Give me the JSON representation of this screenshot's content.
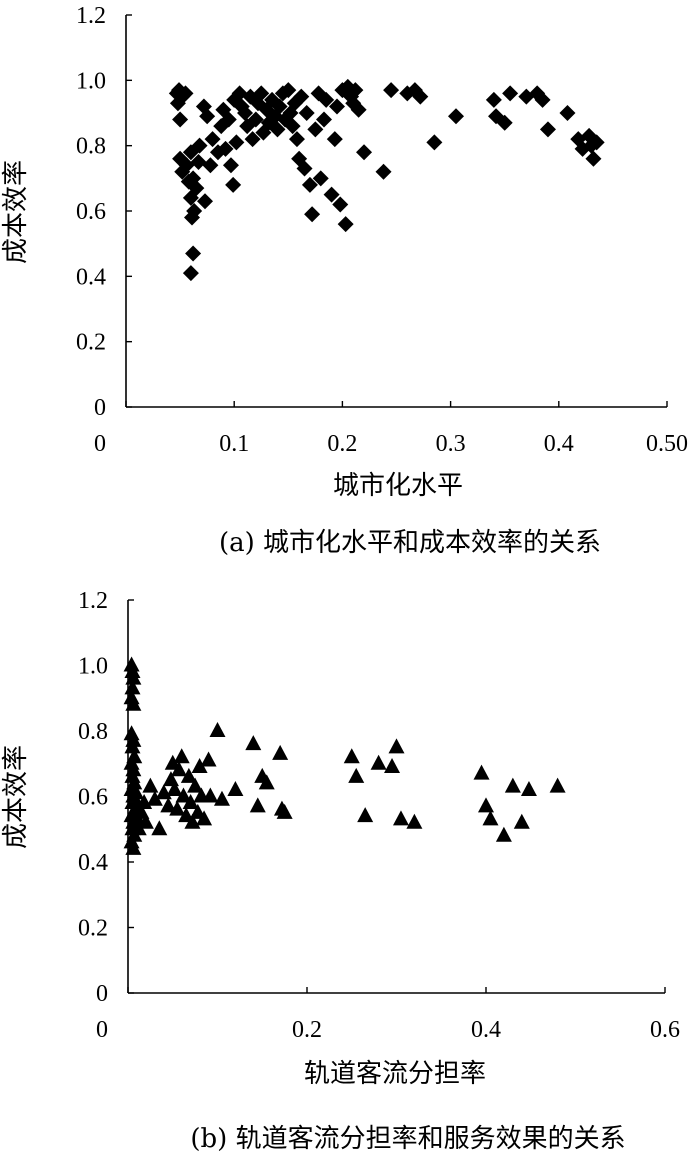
{
  "chart_data": [
    {
      "type": "scatter",
      "marker": "diamond",
      "xlabel": "城市化水平",
      "ylabel": "成本效率",
      "caption": "(a) 城市化水平和成本效率的关系",
      "xlim": [
        0,
        0.5
      ],
      "ylim": [
        0,
        1.2
      ],
      "x_ticks": [
        "0",
        "0.1",
        "0.2",
        "0.3",
        "0.4",
        "0.50"
      ],
      "y_ticks": [
        "0",
        "0.2",
        "0.4",
        "0.6",
        "0.8",
        "1.0",
        "1.2"
      ],
      "points": [
        [
          0.047,
          0.96
        ],
        [
          0.048,
          0.93
        ],
        [
          0.049,
          0.97
        ],
        [
          0.05,
          0.88
        ],
        [
          0.052,
          0.95
        ],
        [
          0.055,
          0.96
        ],
        [
          0.05,
          0.76
        ],
        [
          0.052,
          0.72
        ],
        [
          0.056,
          0.74
        ],
        [
          0.058,
          0.69
        ],
        [
          0.06,
          0.78
        ],
        [
          0.062,
          0.7
        ],
        [
          0.06,
          0.64
        ],
        [
          0.063,
          0.6
        ],
        [
          0.061,
          0.58
        ],
        [
          0.065,
          0.67
        ],
        [
          0.062,
          0.47
        ],
        [
          0.06,
          0.41
        ],
        [
          0.067,
          0.75
        ],
        [
          0.068,
          0.8
        ],
        [
          0.072,
          0.92
        ],
        [
          0.075,
          0.89
        ],
        [
          0.073,
          0.63
        ],
        [
          0.078,
          0.74
        ],
        [
          0.08,
          0.82
        ],
        [
          0.085,
          0.78
        ],
        [
          0.088,
          0.86
        ],
        [
          0.09,
          0.91
        ],
        [
          0.092,
          0.79
        ],
        [
          0.095,
          0.88
        ],
        [
          0.097,
          0.74
        ],
        [
          0.099,
          0.68
        ],
        [
          0.1,
          0.94
        ],
        [
          0.102,
          0.81
        ],
        [
          0.105,
          0.96
        ],
        [
          0.107,
          0.92
        ],
        [
          0.11,
          0.9
        ],
        [
          0.112,
          0.86
        ],
        [
          0.115,
          0.95
        ],
        [
          0.117,
          0.82
        ],
        [
          0.12,
          0.88
        ],
        [
          0.122,
          0.93
        ],
        [
          0.125,
          0.96
        ],
        [
          0.127,
          0.84
        ],
        [
          0.13,
          0.91
        ],
        [
          0.132,
          0.87
        ],
        [
          0.135,
          0.94
        ],
        [
          0.138,
          0.89
        ],
        [
          0.14,
          0.85
        ],
        [
          0.142,
          0.92
        ],
        [
          0.145,
          0.96
        ],
        [
          0.147,
          0.88
        ],
        [
          0.15,
          0.97
        ],
        [
          0.152,
          0.9
        ],
        [
          0.154,
          0.86
        ],
        [
          0.156,
          0.93
        ],
        [
          0.158,
          0.82
        ],
        [
          0.16,
          0.76
        ],
        [
          0.162,
          0.95
        ],
        [
          0.165,
          0.73
        ],
        [
          0.167,
          0.9
        ],
        [
          0.17,
          0.68
        ],
        [
          0.172,
          0.59
        ],
        [
          0.175,
          0.85
        ],
        [
          0.178,
          0.96
        ],
        [
          0.18,
          0.7
        ],
        [
          0.183,
          0.88
        ],
        [
          0.185,
          0.94
        ],
        [
          0.19,
          0.65
        ],
        [
          0.193,
          0.82
        ],
        [
          0.195,
          0.92
        ],
        [
          0.198,
          0.62
        ],
        [
          0.2,
          0.97
        ],
        [
          0.203,
          0.56
        ],
        [
          0.205,
          0.98
        ],
        [
          0.208,
          0.95
        ],
        [
          0.21,
          0.93
        ],
        [
          0.212,
          0.97
        ],
        [
          0.215,
          0.91
        ],
        [
          0.22,
          0.78
        ],
        [
          0.238,
          0.72
        ],
        [
          0.245,
          0.97
        ],
        [
          0.26,
          0.96
        ],
        [
          0.267,
          0.97
        ],
        [
          0.272,
          0.95
        ],
        [
          0.285,
          0.81
        ],
        [
          0.305,
          0.89
        ],
        [
          0.34,
          0.94
        ],
        [
          0.342,
          0.89
        ],
        [
          0.35,
          0.87
        ],
        [
          0.355,
          0.96
        ],
        [
          0.37,
          0.95
        ],
        [
          0.38,
          0.96
        ],
        [
          0.385,
          0.94
        ],
        [
          0.39,
          0.85
        ],
        [
          0.408,
          0.9
        ],
        [
          0.418,
          0.82
        ],
        [
          0.422,
          0.79
        ],
        [
          0.43,
          0.8
        ],
        [
          0.435,
          0.81
        ],
        [
          0.432,
          0.76
        ],
        [
          0.428,
          0.83
        ]
      ]
    },
    {
      "type": "scatter",
      "marker": "triangle",
      "xlabel": "轨道客流分担率",
      "ylabel": "成本效率",
      "caption": "(b) 轨道客流分担率和服务效果的关系",
      "xlim": [
        0,
        0.6
      ],
      "ylim": [
        0,
        1.2
      ],
      "x_ticks": [
        "0",
        "0.2",
        "0.4",
        "0.6"
      ],
      "y_ticks": [
        "0",
        "0.2",
        "0.4",
        "0.6",
        "0.8",
        "1.0",
        "1.2"
      ],
      "points": [
        [
          0.004,
          1.0
        ],
        [
          0.005,
          0.98
        ],
        [
          0.006,
          0.96
        ],
        [
          0.005,
          0.93
        ],
        [
          0.004,
          0.9
        ],
        [
          0.006,
          0.88
        ],
        [
          0.004,
          0.79
        ],
        [
          0.006,
          0.77
        ],
        [
          0.005,
          0.75
        ],
        [
          0.007,
          0.72
        ],
        [
          0.004,
          0.7
        ],
        [
          0.006,
          0.68
        ],
        [
          0.005,
          0.66
        ],
        [
          0.007,
          0.64
        ],
        [
          0.004,
          0.62
        ],
        [
          0.006,
          0.6
        ],
        [
          0.005,
          0.58
        ],
        [
          0.008,
          0.56
        ],
        [
          0.004,
          0.54
        ],
        [
          0.006,
          0.52
        ],
        [
          0.005,
          0.5
        ],
        [
          0.007,
          0.48
        ],
        [
          0.004,
          0.46
        ],
        [
          0.006,
          0.44
        ],
        [
          0.009,
          0.61
        ],
        [
          0.01,
          0.57
        ],
        [
          0.011,
          0.53
        ],
        [
          0.012,
          0.5
        ],
        [
          0.015,
          0.55
        ],
        [
          0.018,
          0.58
        ],
        [
          0.02,
          0.52
        ],
        [
          0.025,
          0.63
        ],
        [
          0.03,
          0.59
        ],
        [
          0.035,
          0.5
        ],
        [
          0.04,
          0.61
        ],
        [
          0.045,
          0.57
        ],
        [
          0.048,
          0.65
        ],
        [
          0.05,
          0.7
        ],
        [
          0.052,
          0.62
        ],
        [
          0.055,
          0.56
        ],
        [
          0.057,
          0.68
        ],
        [
          0.06,
          0.72
        ],
        [
          0.062,
          0.6
        ],
        [
          0.065,
          0.54
        ],
        [
          0.068,
          0.66
        ],
        [
          0.07,
          0.58
        ],
        [
          0.072,
          0.52
        ],
        [
          0.075,
          0.63
        ],
        [
          0.078,
          0.55
        ],
        [
          0.08,
          0.69
        ],
        [
          0.082,
          0.6
        ],
        [
          0.085,
          0.53
        ],
        [
          0.09,
          0.71
        ],
        [
          0.092,
          0.6
        ],
        [
          0.1,
          0.8
        ],
        [
          0.105,
          0.59
        ],
        [
          0.12,
          0.62
        ],
        [
          0.14,
          0.76
        ],
        [
          0.145,
          0.57
        ],
        [
          0.15,
          0.66
        ],
        [
          0.155,
          0.64
        ],
        [
          0.17,
          0.73
        ],
        [
          0.172,
          0.56
        ],
        [
          0.175,
          0.55
        ],
        [
          0.25,
          0.72
        ],
        [
          0.255,
          0.66
        ],
        [
          0.265,
          0.54
        ],
        [
          0.28,
          0.7
        ],
        [
          0.295,
          0.69
        ],
        [
          0.3,
          0.75
        ],
        [
          0.305,
          0.53
        ],
        [
          0.32,
          0.52
        ],
        [
          0.395,
          0.67
        ],
        [
          0.4,
          0.57
        ],
        [
          0.405,
          0.53
        ],
        [
          0.42,
          0.48
        ],
        [
          0.43,
          0.63
        ],
        [
          0.44,
          0.52
        ],
        [
          0.448,
          0.62
        ],
        [
          0.48,
          0.63
        ]
      ]
    }
  ]
}
